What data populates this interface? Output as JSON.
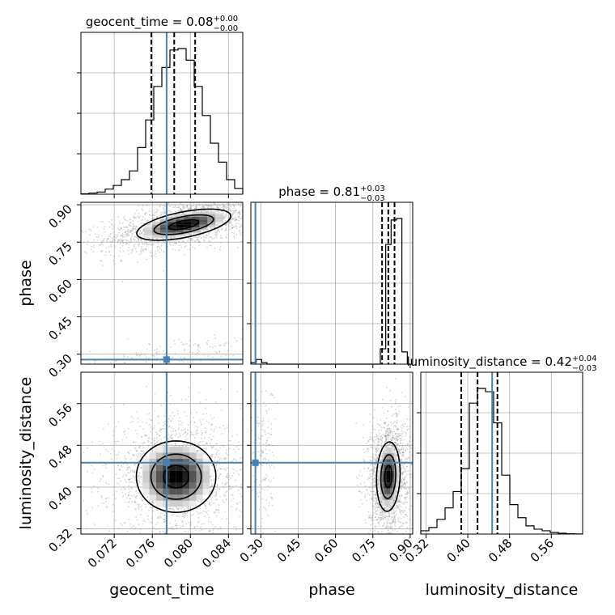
{
  "chart_data": {
    "type": "corner",
    "grid": true,
    "colors": {
      "truth": "#4682b4",
      "histogram": "#000000",
      "scatter": "#888888",
      "density_max": "#000000",
      "grid": "#b0b0b0"
    },
    "parameters": [
      {
        "name": "geocent_time",
        "label": "geocent_time",
        "title": "geocent_time = 0.08",
        "title_plus": "+0.00",
        "title_minus": "−0.00",
        "range": [
          0.0685,
          0.0855
        ],
        "ticks": [
          0.072,
          0.076,
          0.08,
          0.084
        ],
        "tick_labels": [
          "0.072",
          "0.076",
          "0.080",
          "0.084"
        ],
        "truth": 0.0775,
        "quantiles": [
          0.0759,
          0.0783,
          0.0805
        ],
        "histogram": [
          0.003,
          0.008,
          0.015,
          0.035,
          0.06,
          0.1,
          0.16,
          0.32,
          0.51,
          0.74,
          0.87,
          0.99,
          1.0,
          0.92,
          0.74,
          0.54,
          0.35,
          0.22,
          0.1,
          0.04
        ]
      },
      {
        "name": "phase",
        "label": "phase",
        "title": "phase = 0.81",
        "title_plus": "+0.03",
        "title_minus": "−0.03",
        "range": [
          0.26,
          0.91
        ],
        "ticks": [
          0.3,
          0.45,
          0.6,
          0.75,
          0.9
        ],
        "tick_labels": [
          "0.30",
          "0.45",
          "0.60",
          "0.75",
          "0.90"
        ],
        "truth": 0.2783,
        "quantiles": [
          0.787,
          0.812,
          0.837
        ],
        "histogram": [
          0.01,
          0.03,
          0.01,
          0,
          0,
          0,
          0,
          0,
          0,
          0,
          0,
          0,
          0,
          0,
          0,
          0,
          0,
          0,
          0,
          0,
          0,
          0,
          0,
          0,
          0.1,
          0.78,
          0.94,
          0.95,
          0.08,
          0
        ]
      },
      {
        "name": "luminosity_distance",
        "label": "luminosity_distance",
        "title": "luminosity_distance = 0.42",
        "title_plus": "+0.04",
        "title_minus": "−0.03",
        "range": [
          0.31,
          0.62
        ],
        "ticks": [
          0.32,
          0.4,
          0.48,
          0.56
        ],
        "tick_labels": [
          "0.32",
          "0.40",
          "0.48",
          "0.56"
        ],
        "truth": 0.4467,
        "quantiles": [
          0.3875,
          0.4187,
          0.4568
        ],
        "histogram": [
          0.02,
          0.04,
          0.09,
          0.16,
          0.26,
          0.4,
          0.8,
          0.89,
          0.87,
          0.68,
          0.36,
          0.18,
          0.1,
          0.05,
          0.03,
          0.02,
          0.01,
          0.005,
          0.002,
          0.001
        ]
      }
    ],
    "joint": [
      {
        "x": "geocent_time",
        "y": "phase",
        "modes": [
          {
            "cx": 0.0793,
            "cy": 0.82,
            "sx": 0.0026,
            "sy": 0.033,
            "rho": 0.55,
            "weight": 1.0
          },
          {
            "cx": 0.0785,
            "cy": 0.3,
            "sx": 0.0028,
            "sy": 0.025,
            "rho": 0.6,
            "weight": 0.06
          }
        ]
      },
      {
        "x": "geocent_time",
        "y": "luminosity_distance",
        "modes": [
          {
            "cx": 0.0785,
            "cy": 0.42,
            "sx": 0.0022,
            "sy": 0.036,
            "rho": 0.0,
            "weight": 1.0
          }
        ]
      },
      {
        "x": "phase",
        "y": "luminosity_distance",
        "modes": [
          {
            "cx": 0.812,
            "cy": 0.42,
            "sx": 0.025,
            "sy": 0.035,
            "rho": 0.1,
            "weight": 1.0
          },
          {
            "cx": 0.31,
            "cy": 0.45,
            "sx": 0.015,
            "sy": 0.045,
            "rho": 0.0,
            "weight": 0.05
          }
        ]
      }
    ]
  }
}
